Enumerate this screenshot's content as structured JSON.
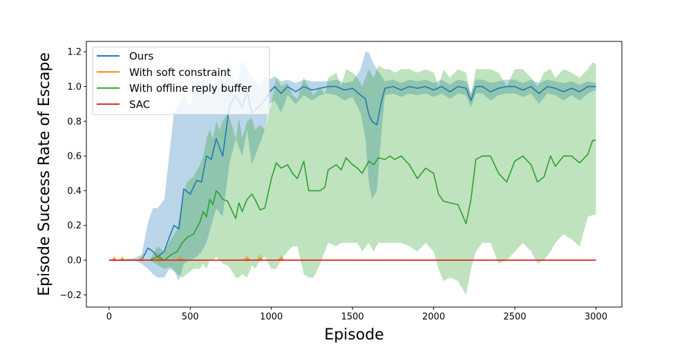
{
  "chart_data": {
    "type": "line",
    "title": "",
    "xlabel": "Episode",
    "ylabel": "Episode Success Rate of Escape",
    "xlim": [
      -140,
      3160
    ],
    "ylim": [
      -0.27,
      1.26
    ],
    "xticks": [
      0,
      500,
      1000,
      1500,
      2000,
      2500,
      3000
    ],
    "yticks": [
      -0.2,
      0.0,
      0.2,
      0.4,
      0.6,
      0.8,
      1.0,
      1.2
    ],
    "ytick_labels": [
      "−0.2",
      "0.0",
      "0.2",
      "0.4",
      "0.6",
      "0.8",
      "1.0",
      "1.2"
    ],
    "grid": false,
    "legend_position": "top-left",
    "series": [
      {
        "name": "Ours",
        "color": "#1f77b4",
        "x": [
          0,
          150,
          200,
          240,
          270,
          300,
          340,
          370,
          400,
          430,
          460,
          500,
          540,
          570,
          600,
          630,
          660,
          700,
          740,
          780,
          820,
          850,
          880,
          920,
          960,
          990,
          1020,
          1060,
          1100,
          1150,
          1200,
          1250,
          1300,
          1350,
          1400,
          1450,
          1500,
          1550,
          1580,
          1600,
          1620,
          1650,
          1680,
          1700,
          1750,
          1800,
          1850,
          1900,
          1950,
          2000,
          2050,
          2100,
          2150,
          2200,
          2230,
          2260,
          2300,
          2350,
          2400,
          2450,
          2500,
          2550,
          2600,
          2650,
          2700,
          2750,
          2800,
          2850,
          2900,
          2950,
          3000
        ],
        "y": [
          0.0,
          0.0,
          0.0,
          0.07,
          0.05,
          0.02,
          0.05,
          0.13,
          0.2,
          0.18,
          0.41,
          0.38,
          0.46,
          0.45,
          0.6,
          0.58,
          0.7,
          0.6,
          0.88,
          0.95,
          0.88,
          0.97,
          0.85,
          0.88,
          0.92,
          0.97,
          1.0,
          0.96,
          1.0,
          0.97,
          1.0,
          0.98,
          0.99,
          1.0,
          1.0,
          0.98,
          0.99,
          0.95,
          0.93,
          0.84,
          0.8,
          0.78,
          0.92,
          0.99,
          1.0,
          0.98,
          1.0,
          0.99,
          1.0,
          0.98,
          1.0,
          0.97,
          1.0,
          0.99,
          0.92,
          1.0,
          1.0,
          0.97,
          0.99,
          1.0,
          1.0,
          0.98,
          1.0,
          0.96,
          1.0,
          0.99,
          0.97,
          0.99,
          0.97,
          1.0,
          1.0
        ],
        "lower": [
          0.0,
          0.0,
          -0.02,
          -0.05,
          -0.08,
          -0.1,
          -0.1,
          -0.05,
          -0.06,
          -0.12,
          -0.02,
          0.0,
          0.02,
          0.05,
          0.1,
          0.2,
          0.3,
          0.25,
          0.55,
          0.7,
          0.6,
          0.75,
          0.55,
          0.65,
          0.75,
          0.9,
          0.92,
          0.85,
          0.95,
          0.9,
          0.95,
          0.92,
          0.95,
          0.96,
          0.95,
          0.92,
          0.94,
          0.85,
          0.7,
          0.45,
          0.35,
          0.4,
          0.75,
          0.95,
          0.96,
          0.94,
          0.96,
          0.95,
          0.96,
          0.94,
          0.96,
          0.93,
          0.96,
          0.95,
          0.88,
          0.96,
          0.96,
          0.92,
          0.95,
          0.96,
          0.96,
          0.94,
          0.96,
          0.9,
          0.96,
          0.95,
          0.92,
          0.95,
          0.92,
          0.96,
          0.98
        ],
        "upper": [
          0.0,
          0.01,
          0.03,
          0.22,
          0.3,
          0.3,
          0.35,
          0.6,
          0.85,
          0.9,
          0.95,
          0.88,
          1.05,
          1.0,
          1.05,
          0.95,
          1.1,
          1.05,
          1.15,
          1.0,
          1.15,
          1.1,
          1.05,
          1.0,
          1.06,
          1.04,
          1.06,
          1.03,
          1.04,
          1.02,
          1.04,
          1.03,
          1.03,
          1.03,
          1.04,
          1.02,
          1.03,
          1.1,
          1.2,
          1.2,
          1.15,
          1.1,
          1.06,
          1.03,
          1.04,
          1.02,
          1.04,
          1.03,
          1.04,
          1.02,
          1.04,
          1.01,
          1.04,
          1.03,
          0.96,
          1.04,
          1.04,
          1.02,
          1.03,
          1.04,
          1.04,
          1.02,
          1.04,
          1.02,
          1.04,
          1.03,
          1.02,
          1.03,
          1.01,
          1.03,
          1.02
        ]
      },
      {
        "name": "With soft constraint",
        "color": "#ff7f0e",
        "x": [
          0,
          20,
          30,
          45,
          70,
          80,
          95,
          180,
          200,
          215,
          290,
          310,
          330,
          420,
          440,
          460,
          830,
          850,
          870,
          910,
          930,
          950,
          1040,
          1060,
          1080,
          3000
        ],
        "y": [
          0.0,
          0.0,
          0.01,
          0.0,
          0.0,
          0.01,
          0.0,
          0.0,
          0.01,
          0.0,
          0.0,
          0.01,
          0.0,
          0.0,
          0.01,
          0.0,
          0.0,
          0.01,
          0.0,
          0.0,
          0.01,
          0.0,
          0.0,
          0.01,
          0.0,
          0.0
        ],
        "lower": [
          0.0,
          0.0,
          -0.01,
          0.0,
          0.0,
          -0.01,
          0.0,
          0.0,
          -0.01,
          0.0,
          0.0,
          -0.02,
          0.0,
          0.0,
          -0.01,
          0.0,
          0.0,
          -0.01,
          0.0,
          0.0,
          -0.01,
          0.0,
          0.0,
          -0.01,
          0.0,
          0.0
        ],
        "upper": [
          0.0,
          0.0,
          0.03,
          0.0,
          0.0,
          0.03,
          0.0,
          0.0,
          0.03,
          0.0,
          0.0,
          0.05,
          0.0,
          0.0,
          0.03,
          0.0,
          0.0,
          0.03,
          0.0,
          0.0,
          0.04,
          0.0,
          0.0,
          0.03,
          0.0,
          0.0
        ]
      },
      {
        "name": "With offline reply buffer",
        "color": "#2ca02c",
        "x": [
          0,
          250,
          300,
          340,
          380,
          420,
          450,
          480,
          520,
          560,
          580,
          600,
          620,
          640,
          660,
          680,
          700,
          730,
          750,
          780,
          800,
          820,
          850,
          880,
          900,
          930,
          960,
          1000,
          1030,
          1060,
          1100,
          1130,
          1160,
          1200,
          1230,
          1260,
          1300,
          1330,
          1350,
          1400,
          1430,
          1460,
          1500,
          1530,
          1560,
          1600,
          1630,
          1660,
          1700,
          1730,
          1760,
          1800,
          1850,
          1900,
          1950,
          2000,
          2030,
          2060,
          2100,
          2150,
          2200,
          2230,
          2260,
          2300,
          2350,
          2400,
          2450,
          2500,
          2550,
          2600,
          2640,
          2680,
          2720,
          2750,
          2800,
          2850,
          2900,
          2950,
          2980,
          3000
        ],
        "y": [
          0.0,
          0.0,
          0.02,
          0.0,
          0.03,
          0.05,
          0.1,
          0.13,
          0.15,
          0.22,
          0.28,
          0.25,
          0.35,
          0.32,
          0.4,
          0.38,
          0.35,
          0.34,
          0.3,
          0.24,
          0.33,
          0.28,
          0.35,
          0.38,
          0.35,
          0.29,
          0.3,
          0.47,
          0.56,
          0.53,
          0.55,
          0.5,
          0.47,
          0.57,
          0.4,
          0.4,
          0.4,
          0.42,
          0.52,
          0.55,
          0.52,
          0.59,
          0.55,
          0.53,
          0.5,
          0.57,
          0.55,
          0.59,
          0.58,
          0.6,
          0.58,
          0.6,
          0.55,
          0.47,
          0.53,
          0.5,
          0.38,
          0.34,
          0.33,
          0.32,
          0.21,
          0.35,
          0.58,
          0.6,
          0.6,
          0.5,
          0.45,
          0.57,
          0.6,
          0.55,
          0.45,
          0.48,
          0.6,
          0.54,
          0.6,
          0.6,
          0.56,
          0.61,
          0.69,
          0.69
        ],
        "lower": [
          0.0,
          0.0,
          -0.03,
          -0.05,
          -0.04,
          -0.08,
          -0.1,
          -0.08,
          -0.05,
          -0.05,
          -0.02,
          -0.05,
          0.0,
          0.0,
          0.02,
          0.0,
          -0.02,
          -0.03,
          -0.05,
          -0.1,
          -0.1,
          -0.08,
          -0.1,
          -0.03,
          -0.05,
          0.0,
          0.02,
          -0.05,
          -0.05,
          0.0,
          0.05,
          0.08,
          0.08,
          -0.08,
          -0.1,
          -0.1,
          -0.02,
          0.05,
          0.1,
          0.08,
          0.1,
          0.1,
          0.1,
          0.1,
          0.05,
          0.1,
          0.05,
          0.1,
          0.1,
          0.1,
          0.1,
          0.1,
          0.08,
          0.05,
          0.1,
          0.05,
          -0.05,
          -0.12,
          -0.1,
          -0.12,
          -0.2,
          -0.05,
          0.05,
          0.1,
          0.1,
          -0.02,
          0.0,
          0.05,
          0.1,
          0.05,
          -0.02,
          0.0,
          0.05,
          0.1,
          0.15,
          0.12,
          0.08,
          0.25,
          0.26,
          0.26
        ],
        "upper": [
          0.0,
          0.0,
          0.08,
          0.05,
          0.12,
          0.18,
          0.35,
          0.45,
          0.48,
          0.55,
          0.6,
          0.7,
          0.75,
          0.7,
          0.8,
          0.75,
          0.8,
          0.85,
          0.8,
          0.7,
          0.82,
          0.7,
          0.8,
          0.82,
          0.75,
          0.78,
          0.75,
          0.9,
          1.05,
          1.0,
          1.02,
          0.95,
          0.93,
          1.05,
          1.0,
          0.95,
          1.0,
          0.95,
          1.05,
          1.08,
          1.0,
          1.1,
          1.08,
          1.05,
          1.0,
          1.1,
          1.05,
          1.12,
          1.1,
          1.1,
          1.08,
          1.1,
          1.1,
          1.08,
          1.1,
          1.08,
          1.0,
          1.1,
          1.05,
          1.1,
          1.08,
          0.95,
          1.1,
          1.1,
          1.1,
          1.08,
          1.0,
          1.1,
          1.1,
          1.05,
          1.0,
          1.08,
          1.1,
          1.05,
          1.1,
          1.08,
          1.05,
          1.1,
          1.14,
          1.13
        ]
      },
      {
        "name": "SAC",
        "color": "#d62728",
        "x": [
          0,
          3000
        ],
        "y": [
          0.0,
          0.0
        ]
      }
    ]
  }
}
